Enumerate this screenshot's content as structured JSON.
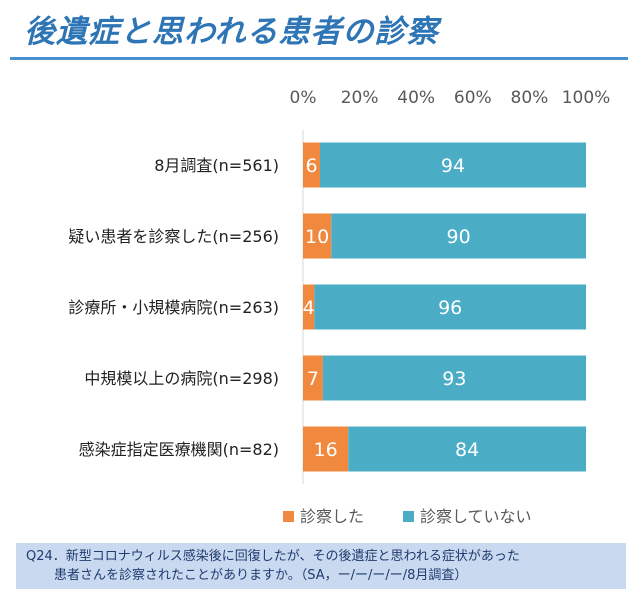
{
  "title": "後遺症と思われる患者の診察",
  "note": {
    "line1": "Q24．新型コロナウィルス感染後に回復したが、その後遺症と思われる症状があった",
    "line2": "患者さんを診察されたことがありますか。（SA，ー/ー/ー/ー/8月調査）"
  },
  "chart_data": {
    "type": "bar",
    "orientation": "horizontal",
    "stacked": "percent",
    "categories": [
      "8月調査(n=561)",
      "疑い患者を診察した(n=256)",
      "診療所・小規模病院(n=263)",
      "中規模以上の病院(n=298)",
      "感染症指定医療機関(n=82)"
    ],
    "series": [
      {
        "name": "診察した",
        "color": "#F0883E",
        "values": [
          6,
          10,
          4,
          7,
          16
        ]
      },
      {
        "name": "診察していない",
        "color": "#4BACC6",
        "values": [
          94,
          90,
          96,
          93,
          84
        ]
      }
    ],
    "xlim": [
      0,
      100
    ],
    "xticks": [
      "0%",
      "20%",
      "40%",
      "60%",
      "80%",
      "100%"
    ],
    "axis_position": "top",
    "legend": "bottom"
  }
}
